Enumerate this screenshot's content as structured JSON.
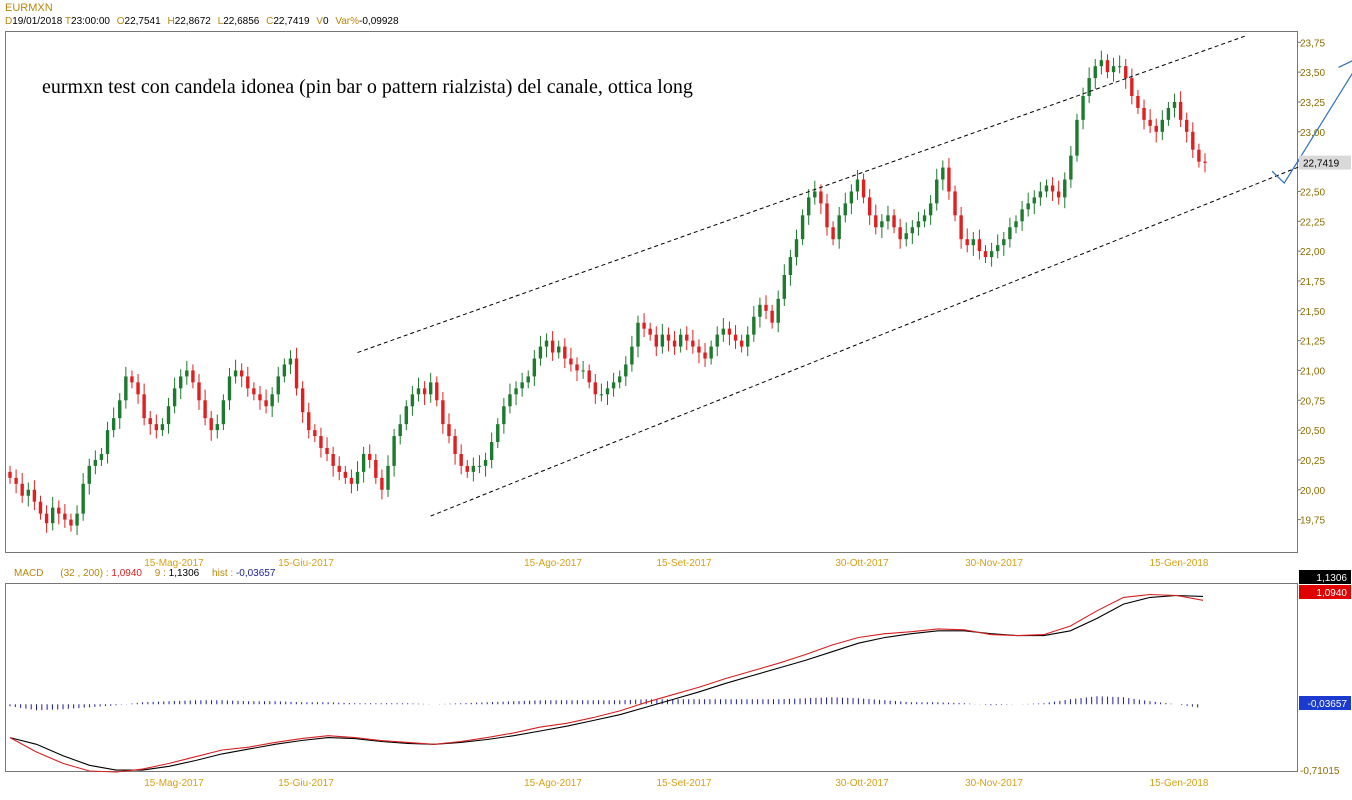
{
  "symbol": "EURMXN",
  "ohlc_header": {
    "date_key": "D",
    "date": "19/01/2018",
    "time_key": "T",
    "time": "23:00:00",
    "open_key": "O",
    "open": "22,7541",
    "high_key": "H",
    "high": "22,8672",
    "low_key": "L",
    "low": "22,6856",
    "close_key": "C",
    "close": "22,7419",
    "volume_key": "V",
    "volume": "0",
    "var_key": "Var%",
    "var": "-0,09928"
  },
  "annotation": "eurmxn test con candela idonea (pin bar o pattern rialzista) del canale, ottica long",
  "macd_header": {
    "label": "MACD",
    "params": "(32 , 200) :",
    "macd_value": "1,0940",
    "signal_period": "9 :",
    "signal_value": "1,1306",
    "hist_label": "hist :",
    "hist_value": "-0,03657"
  },
  "colors": {
    "bull": "#1e7a2e",
    "bear": "#e02020",
    "axis_text": "#d4a017",
    "label_dark": "#8a6d00",
    "macd_line": "#d62020",
    "signal_line": "#000000",
    "hist": "#1a1aa0",
    "arrow": "#2e6fbe"
  },
  "chart_data": {
    "type": "candlestick",
    "title": "EURMXN",
    "y_ticks": [
      "23,75",
      "23,50",
      "23,25",
      "23,00",
      "22,75",
      "22,50",
      "22,25",
      "22,00",
      "21,75",
      "21,50",
      "21,25",
      "21,00",
      "20,75",
      "20,50",
      "20,25",
      "20,00",
      "19,75"
    ],
    "ylim": [
      19.5,
      23.8
    ],
    "x_ticks": [
      "15-Mag-2017",
      "15-Giu-2017",
      "15-Ago-2017",
      "15-Set-2017",
      "30-Ott-2017",
      "30-Nov-2017",
      "15-Gen-2018"
    ],
    "last_price_label": "22,7419",
    "close_series": [
      20.1,
      20.05,
      19.95,
      20.0,
      19.9,
      19.8,
      19.72,
      19.85,
      19.8,
      19.75,
      19.7,
      19.8,
      20.05,
      20.2,
      20.25,
      20.3,
      20.5,
      20.6,
      20.75,
      20.95,
      20.9,
      20.8,
      20.6,
      20.55,
      20.5,
      20.55,
      20.7,
      20.85,
      20.95,
      21.0,
      20.9,
      20.75,
      20.6,
      20.5,
      20.55,
      20.75,
      20.95,
      21.0,
      20.95,
      20.85,
      20.8,
      20.75,
      20.7,
      20.8,
      20.95,
      21.05,
      21.1,
      20.85,
      20.65,
      20.5,
      20.45,
      20.35,
      20.3,
      20.2,
      20.15,
      20.1,
      20.05,
      20.15,
      20.3,
      20.25,
      20.1,
      20.0,
      20.2,
      20.45,
      20.55,
      20.7,
      20.8,
      20.85,
      20.8,
      20.9,
      20.75,
      20.55,
      20.45,
      20.3,
      20.2,
      20.15,
      20.2,
      20.2,
      20.25,
      20.4,
      20.55,
      20.7,
      20.8,
      20.85,
      20.9,
      20.95,
      21.1,
      21.2,
      21.25,
      21.15,
      21.2,
      21.1,
      21.05,
      21.0,
      21.0,
      20.9,
      20.8,
      20.8,
      20.85,
      20.9,
      20.95,
      21.05,
      21.2,
      21.4,
      21.35,
      21.3,
      21.2,
      21.3,
      21.25,
      21.2,
      21.3,
      21.25,
      21.2,
      21.15,
      21.1,
      21.2,
      21.3,
      21.35,
      21.3,
      21.25,
      21.2,
      21.3,
      21.45,
      21.55,
      21.5,
      21.4,
      21.6,
      21.8,
      21.95,
      22.1,
      22.3,
      22.45,
      22.5,
      22.4,
      22.2,
      22.1,
      22.3,
      22.4,
      22.5,
      22.6,
      22.45,
      22.3,
      22.2,
      22.25,
      22.3,
      22.2,
      22.1,
      22.15,
      22.2,
      22.25,
      22.3,
      22.4,
      22.6,
      22.7,
      22.5,
      22.3,
      22.1,
      22.05,
      22.1,
      22.0,
      21.95,
      22.0,
      22.05,
      22.1,
      22.2,
      22.25,
      22.35,
      22.4,
      22.45,
      22.5,
      22.55,
      22.5,
      22.45,
      22.6,
      22.8,
      23.1,
      23.3,
      23.45,
      23.55,
      23.6,
      23.5,
      23.55,
      23.55,
      23.45,
      23.3,
      23.2,
      23.1,
      23.05,
      23.0,
      23.1,
      23.2,
      23.25,
      23.1,
      23.0,
      22.85,
      22.75,
      22.74
    ],
    "channel": {
      "upper": {
        "from_index": 57,
        "from_price": 21.15,
        "to_index": 203,
        "to_price": 23.81
      },
      "lower": {
        "from_index": 69,
        "from_price": 19.78,
        "to_index": 215,
        "to_price": 22.78
      }
    },
    "forecast_arrow": {
      "start_index": 207,
      "start_price": 22.67,
      "low_index": 209,
      "low_price": 22.57,
      "end_index": 222,
      "end_price": 23.64
    },
    "macd": {
      "ylim": [
        -0.71015,
        1.25
      ],
      "labels": {
        "macd_last": "1,0940",
        "signal_last": "1,1306",
        "hist_last": "-0,03657",
        "min": "-0,71015"
      },
      "macd_series": [
        -0.35,
        -0.5,
        -0.62,
        -0.7,
        -0.71,
        -0.68,
        -0.62,
        -0.55,
        -0.48,
        -0.45,
        -0.4,
        -0.36,
        -0.33,
        -0.35,
        -0.38,
        -0.4,
        -0.42,
        -0.39,
        -0.35,
        -0.3,
        -0.24,
        -0.2,
        -0.14,
        -0.07,
        0.02,
        0.1,
        0.18,
        0.27,
        0.35,
        0.43,
        0.52,
        0.62,
        0.7,
        0.74,
        0.76,
        0.79,
        0.78,
        0.73,
        0.72,
        0.73,
        0.82,
        0.98,
        1.12,
        1.15,
        1.14,
        1.09
      ],
      "signal_series": [
        -0.35,
        -0.42,
        -0.54,
        -0.64,
        -0.69,
        -0.69,
        -0.65,
        -0.59,
        -0.52,
        -0.47,
        -0.42,
        -0.38,
        -0.35,
        -0.36,
        -0.39,
        -0.41,
        -0.42,
        -0.4,
        -0.37,
        -0.33,
        -0.28,
        -0.23,
        -0.17,
        -0.11,
        -0.03,
        0.05,
        0.13,
        0.22,
        0.3,
        0.38,
        0.46,
        0.55,
        0.64,
        0.7,
        0.74,
        0.77,
        0.77,
        0.74,
        0.72,
        0.72,
        0.77,
        0.9,
        1.05,
        1.12,
        1.14,
        1.13
      ],
      "hist_series": [
        -0.02,
        -0.06,
        -0.05,
        -0.03,
        -0.01,
        0.02,
        0.03,
        0.04,
        0.04,
        0.03,
        0.03,
        0.02,
        0.02,
        0.01,
        0.01,
        0.01,
        0.0,
        0.01,
        0.02,
        0.03,
        0.04,
        0.04,
        0.04,
        0.04,
        0.05,
        0.05,
        0.05,
        0.05,
        0.05,
        0.05,
        0.06,
        0.07,
        0.06,
        0.04,
        0.02,
        0.02,
        0.01,
        -0.01,
        0.0,
        0.01,
        0.05,
        0.08,
        0.07,
        0.03,
        0.0,
        -0.04
      ]
    }
  }
}
